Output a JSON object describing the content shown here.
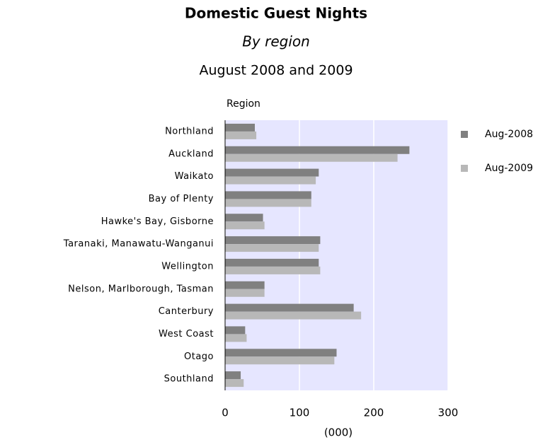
{
  "chart_data": {
    "type": "bar",
    "orientation": "horizontal",
    "title": "Domestic Guest Nights",
    "subtitle": "By region",
    "subtitle2": "August 2008 and 2009",
    "y_axis_label": "Region",
    "x_axis_label": "(000)",
    "categories": [
      "Northland",
      "Auckland",
      "Waikato",
      "Bay of Plenty",
      "Hawke's Bay, Gisborne",
      "Taranaki, Manawatu-Wanganui",
      "Wellington",
      "Nelson, Marlborough, Tasman",
      "Canterbury",
      "West Coast",
      "Otago",
      "Southland"
    ],
    "series": [
      {
        "name": "Aug-2008",
        "color": "#808080",
        "values": [
          40,
          248,
          126,
          116,
          51,
          128,
          126,
          53,
          173,
          27,
          150,
          21
        ]
      },
      {
        "name": "Aug-2009",
        "color": "#b8b8b8",
        "values": [
          42,
          232,
          122,
          116,
          53,
          126,
          128,
          53,
          183,
          29,
          147,
          25
        ]
      }
    ],
    "xlim": [
      0,
      300
    ],
    "xticks": [
      0,
      100,
      200,
      300
    ],
    "grid": true,
    "plot_background": "#e6e6ff",
    "legend": "right"
  }
}
